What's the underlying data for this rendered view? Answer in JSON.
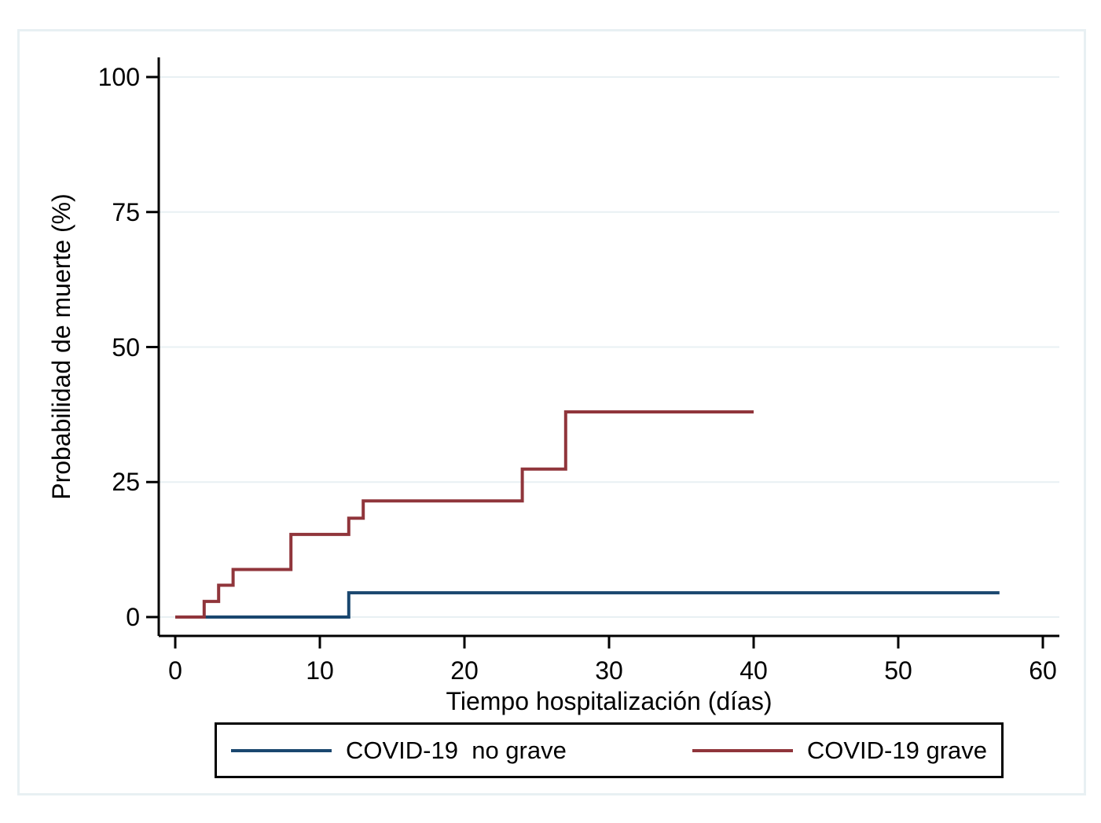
{
  "colors": {
    "no_grave_line": "#1a476f",
    "grave_line": "#90353b",
    "grid": "#e8f0f3",
    "figure_border": "#e8f0f3",
    "axis": "#000000",
    "legend_border": "#000000",
    "background": "#ffffff"
  },
  "chart_data": {
    "type": "line",
    "subtype": "kaplan-meier-step-curve",
    "title": "",
    "xlabel": "Tiempo hospitalización (días)",
    "ylabel": "Probabilidad de muerte (%)",
    "xlim": [
      0,
      62
    ],
    "ylim": [
      0,
      107
    ],
    "xticks": [
      0,
      10,
      20,
      30,
      40,
      50,
      60
    ],
    "yticks": [
      0,
      25,
      50,
      75,
      100
    ],
    "grid": "horizontal-only",
    "legend_position": "bottom",
    "series": [
      {
        "name": "COVID-19  no grave",
        "color": "#1a476f",
        "step": "after",
        "points": [
          [
            0,
            0
          ],
          [
            12,
            4.5
          ],
          [
            57,
            4.5
          ]
        ]
      },
      {
        "name": "COVID-19 grave",
        "color": "#90353b",
        "step": "after",
        "points": [
          [
            0,
            0
          ],
          [
            2,
            2.9
          ],
          [
            3,
            5.9
          ],
          [
            4,
            8.8
          ],
          [
            8,
            15.3
          ],
          [
            12,
            18.3
          ],
          [
            13,
            21.5
          ],
          [
            24,
            27.4
          ],
          [
            27,
            38.0
          ],
          [
            40,
            38.0
          ]
        ]
      }
    ]
  }
}
